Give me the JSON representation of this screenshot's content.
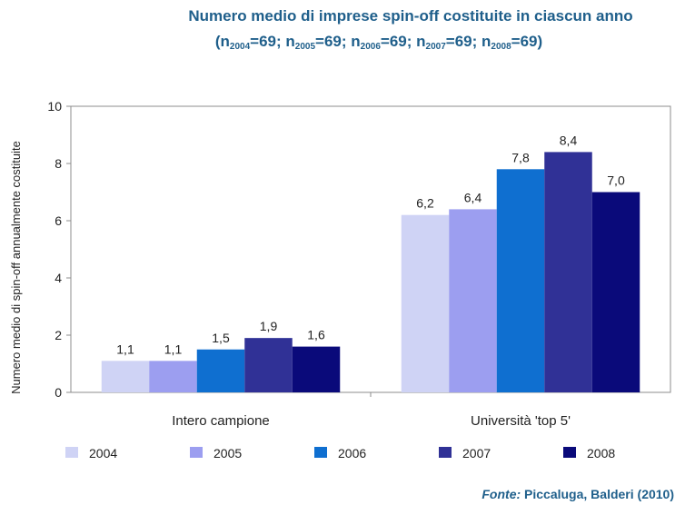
{
  "title": {
    "line1": "Numero medio di imprese spin-off costituite in ciascun anno",
    "line2_parts": [
      {
        "n": "n",
        "sub": "2004",
        "val": "=69; "
      },
      {
        "n": "n",
        "sub": "2005",
        "val": "=69; "
      },
      {
        "n": "n",
        "sub": "2006",
        "val": "=69; "
      },
      {
        "n": "n",
        "sub": "2007",
        "val": "=69; "
      },
      {
        "n": "n",
        "sub": "2008",
        "val": "=69)"
      }
    ],
    "line2_prefix": "("
  },
  "source": {
    "label": "Fonte:",
    "text": " Piccaluga, Balderi (2010)"
  },
  "colors": {
    "2004": "#cfd3f5",
    "2005": "#9c9ef0",
    "2006": "#0f6fd0",
    "2007": "#303196",
    "2008": "#0a0a7a",
    "title": "#1f5f8b"
  },
  "chart_data": {
    "type": "bar",
    "title": "Numero medio di imprese spin-off costituite in ciascun anno",
    "xlabel": "",
    "ylabel": "Numero medio di spin-off annualmente costituite",
    "ylim": [
      0,
      10
    ],
    "yticks": [
      "0",
      "2",
      "4",
      "6",
      "8",
      "10"
    ],
    "categories": [
      "Intero campione",
      "Università 'top 5'"
    ],
    "legend_position": "bottom",
    "grid": false,
    "series": [
      {
        "name": "2004",
        "values": [
          1.1,
          6.2
        ],
        "labels": [
          "1,1",
          "6,2"
        ]
      },
      {
        "name": "2005",
        "values": [
          1.1,
          6.4
        ],
        "labels": [
          "1,1",
          "6,4"
        ]
      },
      {
        "name": "2006",
        "values": [
          1.5,
          7.8
        ],
        "labels": [
          "1,5",
          "7,8"
        ]
      },
      {
        "name": "2007",
        "values": [
          1.9,
          8.4
        ],
        "labels": [
          "1,9",
          "8,4"
        ]
      },
      {
        "name": "2008",
        "values": [
          1.6,
          7.0
        ],
        "labels": [
          "1,6",
          "7,0"
        ]
      }
    ]
  }
}
